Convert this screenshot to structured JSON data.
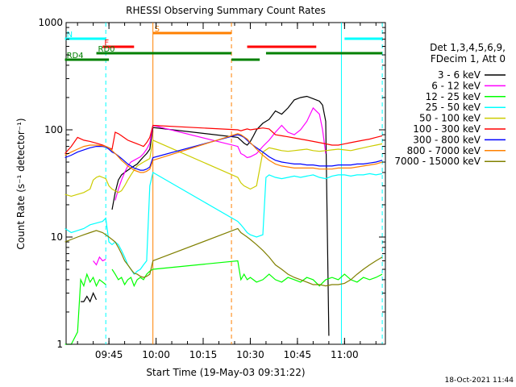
{
  "chart_data": {
    "type": "line",
    "title": "RHESSI Observing Summary Count Rates",
    "xlabel": "Start Time (19-May-03 09:31:22)",
    "ylabel": "Count Rate (s⁻¹ detector⁻¹)",
    "y_scale": "log",
    "ylim": [
      1,
      1000
    ],
    "y_ticks": [
      "1",
      "10",
      "100",
      "1000"
    ],
    "xlim": [
      "09:31:22",
      "11:13:00"
    ],
    "x_ticks": [
      "09:45",
      "10:00",
      "10:15",
      "10:30",
      "10:45",
      "11:00"
    ],
    "grid": false,
    "legend_placement": "right",
    "legend_header": [
      "Det 1,3,4,5,6,9,",
      "FDecim 1, Att 0"
    ],
    "timestamp": "18-Oct-2021 11:44",
    "state_flags": [
      {
        "label": "N",
        "color": "#00ffff",
        "spans": [
          [
            "09:31",
            "09:44"
          ],
          [
            "11:00",
            "11:12"
          ]
        ]
      },
      {
        "label": "S",
        "color": "#ff8000",
        "spans": [
          [
            "09:59",
            "10:24"
          ]
        ]
      },
      {
        "label": "F",
        "color": "#ff0000",
        "spans": [
          [
            "09:43",
            "09:53"
          ],
          [
            "10:29",
            "10:51"
          ]
        ]
      },
      {
        "label": "RD0",
        "color": "#008000",
        "spans": [
          [
            "09:41",
            "10:24"
          ],
          [
            "10:35",
            "11:12"
          ]
        ]
      },
      {
        "label": "RD4",
        "color": "#008000",
        "spans": [
          [
            "09:31",
            "09:45"
          ],
          [
            "10:24",
            "10:33"
          ]
        ]
      }
    ],
    "vertical_markers": [
      {
        "time": "09:44",
        "color": "#00ffff",
        "style": "dashed"
      },
      {
        "time": "09:59",
        "color": "#ff8000",
        "style": "solid"
      },
      {
        "time": "10:24",
        "color": "#ff8000",
        "style": "dashed"
      },
      {
        "time": "10:59",
        "color": "#00ffff",
        "style": "solid"
      },
      {
        "time": "11:12",
        "color": "#00ffff",
        "style": "dashed"
      }
    ],
    "series": [
      {
        "name": "3 - 6 keV",
        "color": "#000000",
        "x": [
          "09:36",
          "09:37",
          "09:38",
          "09:39",
          "09:40",
          "09:41",
          "09:42",
          "09:43",
          "09:44",
          "09:45",
          "09:46",
          "09:47",
          "09:48",
          "09:49",
          "09:50",
          "09:51",
          "09:52",
          "09:53",
          "09:54",
          "09:55",
          "09:56",
          "09:57",
          "09:58",
          "09:59",
          "10:26",
          "10:27",
          "10:28",
          "10:29",
          "10:30",
          "10:31",
          "10:32",
          "10:34",
          "10:36",
          "10:38",
          "10:40",
          "10:42",
          "10:44",
          "10:46",
          "10:48",
          "10:50",
          "10:52",
          "10:53",
          "10:54",
          "10:55"
        ],
        "y": [
          2.5,
          2.5,
          2.8,
          2.5,
          3.0,
          2.6,
          null,
          null,
          null,
          null,
          18,
          26,
          34,
          38,
          40,
          42,
          44,
          46,
          48,
          52,
          56,
          60,
          66,
          105,
          85,
          80,
          75,
          72,
          78,
          88,
          100,
          115,
          125,
          150,
          140,
          160,
          190,
          200,
          205,
          195,
          185,
          170,
          120,
          1.2
        ]
      },
      {
        "name": "6 - 12 keV",
        "color": "#ff00ff",
        "x": [
          "09:40",
          "09:41",
          "09:42",
          "09:43",
          "09:44",
          "09:45",
          "09:46",
          "09:47",
          "09:48",
          "09:49",
          "09:50",
          "09:51",
          "09:52",
          "09:53",
          "09:54",
          "09:55",
          "09:56",
          "09:57",
          "09:58",
          "09:59",
          "10:26",
          "10:27",
          "10:28",
          "10:29",
          "10:30",
          "10:32",
          "10:34",
          "10:36",
          "10:38",
          "10:40",
          "10:42",
          "10:44",
          "10:46",
          "10:48",
          "10:50",
          "10:52",
          "10:53",
          "10:54"
        ],
        "y": [
          6.0,
          5.5,
          6.5,
          6.0,
          6.2,
          null,
          null,
          22,
          28,
          34,
          40,
          46,
          50,
          52,
          54,
          56,
          60,
          66,
          75,
          110,
          70,
          60,
          58,
          55,
          56,
          60,
          70,
          80,
          95,
          110,
          95,
          90,
          100,
          120,
          160,
          140,
          100,
          60
        ]
      },
      {
        "name": "12 - 25 keV",
        "color": "#00ff00",
        "x": [
          "09:31",
          "09:33",
          "09:35",
          "09:36",
          "09:37",
          "09:38",
          "09:39",
          "09:40",
          "09:41",
          "09:42",
          "09:43",
          "09:44",
          "09:45",
          "09:46",
          "09:47",
          "09:48",
          "09:49",
          "09:50",
          "09:51",
          "09:52",
          "09:53",
          "09:54",
          "09:55",
          "09:56",
          "09:57",
          "09:58",
          "09:59",
          "10:26",
          "10:27",
          "10:28",
          "10:29",
          "10:30",
          "10:32",
          "10:34",
          "10:36",
          "10:38",
          "10:40",
          "10:42",
          "10:44",
          "10:46",
          "10:48",
          "10:50",
          "10:52",
          "10:54",
          "10:56",
          "10:58",
          "11:00",
          "11:02",
          "11:04",
          "11:06",
          "11:08",
          "11:10",
          "11:12"
        ],
        "y": [
          1.0,
          1.0,
          1.3,
          4.0,
          3.5,
          4.5,
          3.8,
          4.2,
          3.5,
          4.0,
          3.8,
          3.6,
          null,
          5.0,
          4.5,
          4.0,
          4.2,
          3.6,
          4.0,
          4.2,
          3.5,
          4.0,
          4.2,
          4.0,
          4.5,
          4.8,
          5.0,
          6.0,
          4.0,
          4.5,
          4.0,
          4.2,
          3.8,
          4.0,
          4.5,
          4.0,
          3.8,
          4.2,
          4.0,
          3.8,
          4.2,
          4.0,
          3.5,
          4.0,
          4.2,
          4.0,
          4.5,
          4.0,
          3.8,
          4.2,
          4.0,
          4.2,
          4.5
        ]
      },
      {
        "name": "25 - 50 keV",
        "color": "#00ffff",
        "x": [
          "09:31",
          "09:33",
          "09:35",
          "09:37",
          "09:39",
          "09:41",
          "09:43",
          "09:44",
          "09:45",
          "09:46",
          "09:47",
          "09:48",
          "09:49",
          "09:50",
          "09:51",
          "09:52",
          "09:53",
          "09:54",
          "09:55",
          "09:56",
          "09:57",
          "09:58",
          "09:59",
          "10:26",
          "10:27",
          "10:28",
          "10:29",
          "10:30",
          "10:32",
          "10:34",
          "10:35",
          "10:36",
          "10:38",
          "10:40",
          "10:42",
          "10:44",
          "10:46",
          "10:48",
          "10:50",
          "10:52",
          "10:54",
          "10:56",
          "10:58",
          "11:00",
          "11:02",
          "11:04",
          "11:06",
          "11:08",
          "11:10",
          "11:12"
        ],
        "y": [
          12,
          11,
          11.5,
          12,
          13,
          13.5,
          14,
          15,
          9,
          8.5,
          9,
          8.5,
          7.5,
          6.5,
          5.5,
          5,
          4.5,
          4.8,
          5,
          5.5,
          6,
          30,
          40,
          14,
          13,
          12,
          11,
          10.5,
          10,
          10.5,
          36,
          38,
          36,
          35,
          36,
          37,
          36,
          37,
          38,
          36,
          35,
          37,
          38,
          38,
          37,
          38,
          38,
          39,
          38,
          39
        ]
      },
      {
        "name": "50 - 100 keV",
        "color": "#cccc00",
        "x": [
          "09:31",
          "09:33",
          "09:35",
          "09:37",
          "09:39",
          "09:40",
          "09:41",
          "09:42",
          "09:43",
          "09:44",
          "09:45",
          "09:46",
          "09:47",
          "09:48",
          "09:49",
          "09:50",
          "09:51",
          "09:52",
          "09:53",
          "09:54",
          "09:55",
          "09:56",
          "09:57",
          "09:58",
          "09:59",
          "10:26",
          "10:27",
          "10:28",
          "10:29",
          "10:30",
          "10:32",
          "10:34",
          "10:36",
          "10:38",
          "10:40",
          "10:42",
          "10:44",
          "10:46",
          "10:48",
          "10:50",
          "10:52",
          "10:54",
          "10:56",
          "10:58",
          "11:00",
          "11:02",
          "11:04",
          "11:06",
          "11:08",
          "11:10",
          "11:12"
        ],
        "y": [
          25,
          24,
          25,
          26,
          28,
          34,
          36,
          37,
          36,
          35,
          30,
          28,
          27,
          26,
          27,
          30,
          34,
          38,
          42,
          46,
          48,
          50,
          52,
          54,
          80,
          36,
          32,
          30,
          29,
          28,
          30,
          62,
          68,
          66,
          64,
          63,
          64,
          65,
          66,
          64,
          63,
          64,
          65,
          66,
          65,
          64,
          66,
          68,
          70,
          72,
          74
        ]
      },
      {
        "name": "100 - 300 keV",
        "color": "#ff0000",
        "x": [
          "09:31",
          "09:33",
          "09:35",
          "09:37",
          "09:39",
          "09:41",
          "09:43",
          "09:44",
          "09:45",
          "09:46",
          "09:47",
          "09:48",
          "09:49",
          "09:50",
          "09:51",
          "09:52",
          "09:53",
          "09:54",
          "09:55",
          "09:56",
          "09:57",
          "09:58",
          "09:59",
          "10:26",
          "10:27",
          "10:28",
          "10:29",
          "10:30",
          "10:32",
          "10:34",
          "10:36",
          "10:38",
          "10:40",
          "10:42",
          "10:44",
          "10:46",
          "10:48",
          "10:50",
          "10:52",
          "10:54",
          "10:56",
          "10:58",
          "11:00",
          "11:02",
          "11:04",
          "11:06",
          "11:08",
          "11:10",
          "11:12"
        ],
        "y": [
          60,
          70,
          85,
          80,
          78,
          75,
          72,
          70,
          68,
          66,
          95,
          92,
          88,
          84,
          80,
          78,
          76,
          74,
          72,
          70,
          76,
          85,
          110,
          100,
          98,
          100,
          102,
          100,
          102,
          104,
          102,
          90,
          88,
          86,
          84,
          82,
          80,
          78,
          76,
          74,
          72,
          72,
          74,
          76,
          78,
          80,
          82,
          85,
          88
        ]
      },
      {
        "name": "300 - 800 keV",
        "color": "#0000ff",
        "x": [
          "09:31",
          "09:33",
          "09:35",
          "09:37",
          "09:39",
          "09:41",
          "09:43",
          "09:44",
          "09:45",
          "09:46",
          "09:47",
          "09:48",
          "09:49",
          "09:50",
          "09:51",
          "09:52",
          "09:53",
          "09:54",
          "09:55",
          "09:56",
          "09:57",
          "09:58",
          "09:59",
          "10:26",
          "10:27",
          "10:28",
          "10:29",
          "10:30",
          "10:32",
          "10:34",
          "10:36",
          "10:38",
          "10:40",
          "10:42",
          "10:44",
          "10:46",
          "10:48",
          "10:50",
          "10:52",
          "10:54",
          "10:56",
          "10:58",
          "11:00",
          "11:02",
          "11:04",
          "11:06",
          "11:08",
          "11:10",
          "11:12"
        ],
        "y": [
          55,
          58,
          62,
          65,
          68,
          70,
          70,
          69,
          66,
          62,
          60,
          57,
          54,
          51,
          48,
          46,
          44,
          43,
          42,
          42,
          43,
          45,
          55,
          90,
          88,
          85,
          80,
          75,
          68,
          62,
          56,
          52,
          50,
          49,
          48,
          48,
          47,
          47,
          46,
          46,
          46,
          47,
          47,
          47,
          48,
          48,
          49,
          50,
          52
        ]
      },
      {
        "name": "800 - 7000 keV",
        "color": "#ff8000",
        "x": [
          "09:31",
          "09:33",
          "09:35",
          "09:37",
          "09:39",
          "09:41",
          "09:43",
          "09:44",
          "09:45",
          "09:46",
          "09:47",
          "09:48",
          "09:49",
          "09:50",
          "09:51",
          "09:52",
          "09:53",
          "09:54",
          "09:55",
          "09:56",
          "09:57",
          "09:58",
          "09:59",
          "10:26",
          "10:27",
          "10:28",
          "10:29",
          "10:30",
          "10:32",
          "10:34",
          "10:36",
          "10:38",
          "10:40",
          "10:42",
          "10:44",
          "10:46",
          "10:48",
          "10:50",
          "10:52",
          "10:54",
          "10:56",
          "10:58",
          "11:00",
          "11:02",
          "11:04",
          "11:06",
          "11:08",
          "11:10",
          "11:12"
        ],
        "y": [
          58,
          62,
          66,
          70,
          72,
          72,
          71,
          70,
          68,
          64,
          60,
          56,
          52,
          49,
          46,
          44,
          42,
          41,
          40,
          40,
          41,
          43,
          52,
          92,
          90,
          86,
          82,
          76,
          66,
          58,
          52,
          48,
          46,
          45,
          44,
          44,
          44,
          44,
          43,
          43,
          43,
          44,
          44,
          44,
          45,
          46,
          47,
          48,
          50
        ]
      },
      {
        "name": "7000 - 15000 keV",
        "color": "#808000",
        "x": [
          "09:31",
          "09:33",
          "09:35",
          "09:37",
          "09:39",
          "09:41",
          "09:43",
          "09:44",
          "09:45",
          "09:46",
          "09:47",
          "09:48",
          "09:49",
          "09:50",
          "09:51",
          "09:52",
          "09:53",
          "09:54",
          "09:55",
          "09:56",
          "09:57",
          "09:58",
          "09:59",
          "10:26",
          "10:27",
          "10:28",
          "10:29",
          "10:30",
          "10:32",
          "10:34",
          "10:36",
          "10:38",
          "10:40",
          "10:42",
          "10:44",
          "10:46",
          "10:48",
          "10:50",
          "10:52",
          "10:54",
          "10:56",
          "10:58",
          "11:00",
          "11:02",
          "11:04",
          "11:06",
          "11:08",
          "11:10",
          "11:12"
        ],
        "y": [
          9,
          9.5,
          10,
          10.5,
          11,
          11.5,
          11,
          10.5,
          10,
          9.5,
          9,
          8,
          7,
          6,
          5.5,
          5,
          4.6,
          4.5,
          4.3,
          4.2,
          4.3,
          4.5,
          6,
          12,
          11,
          10.5,
          10,
          9.5,
          8.5,
          7.5,
          6.5,
          5.5,
          5,
          4.5,
          4.2,
          4.0,
          3.8,
          3.6,
          3.6,
          3.5,
          3.6,
          3.6,
          3.7,
          4.0,
          4.5,
          5.0,
          5.5,
          6.0,
          6.5
        ]
      }
    ]
  }
}
